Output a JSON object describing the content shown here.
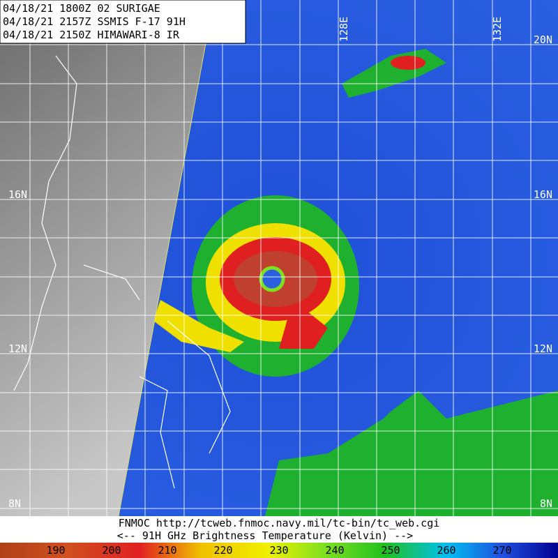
{
  "header": {
    "lines": [
      "04/18/21 1800Z  02 SURIGAE",
      "04/18/21 2157Z  SSMIS F-17 91H",
      "04/18/21 2150Z  HIMAWARI-8 IR"
    ]
  },
  "grid_labels": {
    "longitudes": [
      "128E",
      "132E"
    ],
    "latitudes_left": [
      "16N",
      "12N",
      "8N"
    ],
    "latitudes_right": [
      "20N",
      "16N",
      "12N",
      "8N"
    ]
  },
  "footer": {
    "source": "FNMOC  http://tcweb.fnmoc.navy.mil/tc-bin/tc_web.cgi",
    "legend_title": "<--  91H GHz Brightness Temperature (Kelvin)  -->"
  },
  "colorbar": {
    "labels": [
      "190",
      "200",
      "210",
      "220",
      "230",
      "240",
      "250",
      "260",
      "270"
    ]
  }
}
